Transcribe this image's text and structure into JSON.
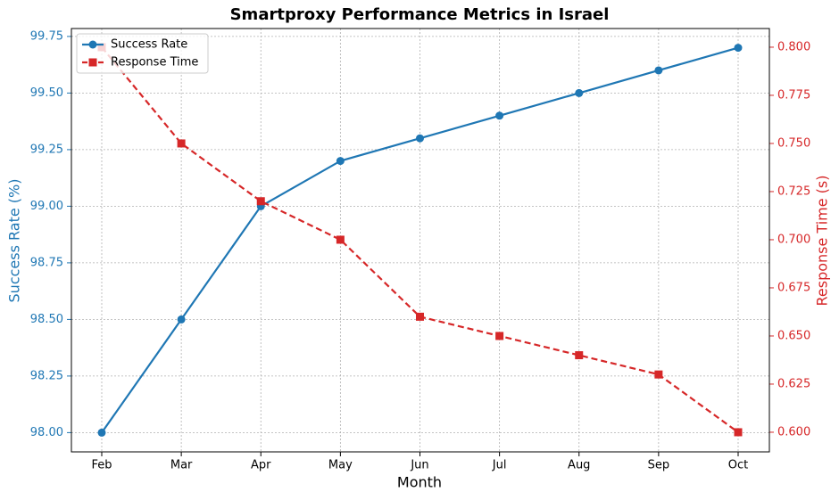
{
  "chart_data": {
    "type": "line",
    "title": "Smartproxy Performance Metrics in Israel",
    "xlabel": "Month",
    "ylabel": "Success Rate (%)",
    "y2label": "Response Time (s)",
    "categories": [
      "Feb",
      "Mar",
      "Apr",
      "May",
      "Jun",
      "Jul",
      "Aug",
      "Sep",
      "Oct"
    ],
    "series": [
      {
        "name": "Success Rate",
        "color": "#1f77b4",
        "marker": "circle",
        "linestyle": "solid",
        "axis": "y",
        "values": [
          98.0,
          98.5,
          99.0,
          99.2,
          99.3,
          99.4,
          99.5,
          99.6,
          99.7
        ]
      },
      {
        "name": "Response Time",
        "color": "#d62728",
        "marker": "square",
        "linestyle": "dashed",
        "axis": "y2",
        "values": [
          0.8,
          0.75,
          0.72,
          0.7,
          0.66,
          0.65,
          0.64,
          0.63,
          0.6
        ]
      }
    ],
    "ylim": [
      97.915,
      99.785
    ],
    "yticks": [
      {
        "value": 98,
        "label": "98.00"
      },
      98.25,
      {
        "value": 98.5,
        "label": "98.50"
      },
      {
        "value": 98.75,
        "label": "98.75"
      },
      {
        "value": 99,
        "label": "99.00"
      },
      99.25,
      {
        "value": 99.5,
        "label": "99.50"
      },
      99.75
    ],
    "y2lim": [
      0.5898,
      0.8097
    ],
    "y2ticks": [
      {
        "value": 0.6,
        "label": "0.600"
      },
      0.625,
      {
        "value": 0.65,
        "label": "0.650"
      },
      0.675,
      {
        "value": 0.7,
        "label": "0.700"
      },
      0.725,
      {
        "value": 0.75,
        "label": "0.750"
      },
      0.775,
      {
        "value": 0.8,
        "label": "0.800"
      }
    ],
    "grid": true,
    "legend": "upper left"
  }
}
